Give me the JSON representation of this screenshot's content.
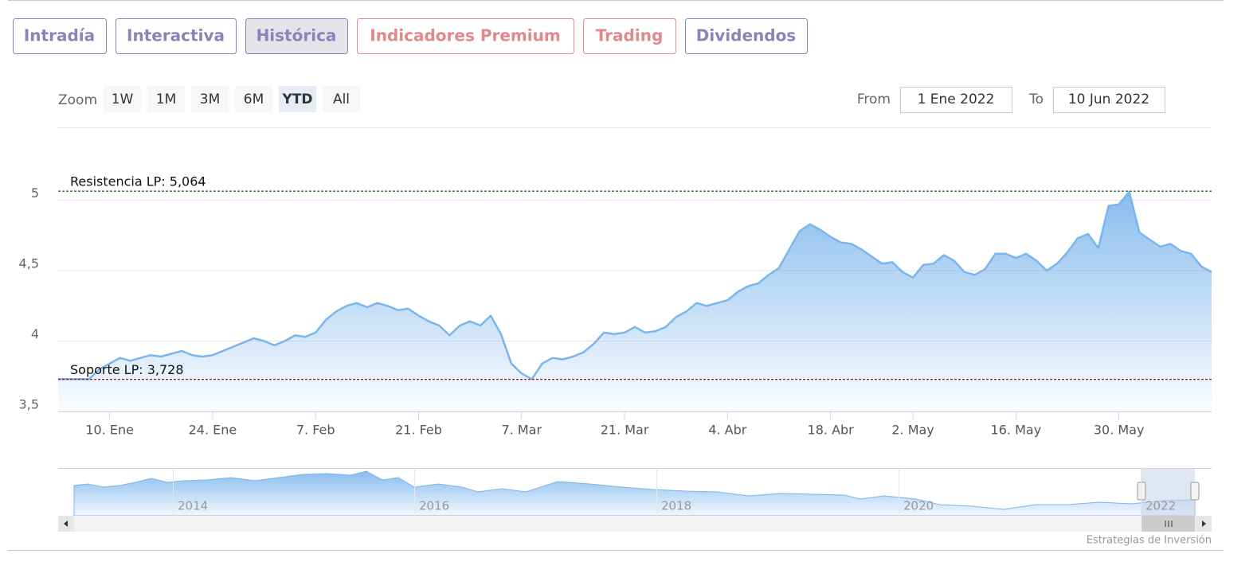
{
  "tabs": [
    {
      "label": "Intradía",
      "color": "#8c82b8",
      "active": false
    },
    {
      "label": "Interactiva",
      "color": "#8c82b8",
      "active": false
    },
    {
      "label": "Histórica",
      "color": "#8c82b8",
      "active": true
    },
    {
      "label": "Indicadores Premium",
      "color": "#e0888a",
      "active": false
    },
    {
      "label": "Trading",
      "color": "#e0888a",
      "active": false
    },
    {
      "label": "Dividendos",
      "color": "#8c82b8",
      "active": false
    }
  ],
  "range_selector": {
    "zoom_label": "Zoom",
    "buttons": [
      "1W",
      "1M",
      "3M",
      "6M",
      "YTD",
      "All"
    ],
    "selected": "YTD"
  },
  "date_inputs": {
    "from_label": "From",
    "from": "1 Ene 2022",
    "to_label": "To",
    "to": "10 Jun 2022"
  },
  "chart_data": {
    "type": "area",
    "color": "#7cb5ec",
    "values": [
      3.73,
      3.73,
      3.73,
      3.73,
      3.8,
      3.84,
      3.88,
      3.86,
      3.88,
      3.9,
      3.89,
      3.91,
      3.93,
      3.9,
      3.89,
      3.9,
      3.93,
      3.96,
      3.99,
      4.02,
      4.0,
      3.97,
      4.0,
      4.04,
      4.03,
      4.06,
      4.15,
      4.21,
      4.25,
      4.27,
      4.24,
      4.27,
      4.25,
      4.22,
      4.23,
      4.18,
      4.14,
      4.11,
      4.04,
      4.11,
      4.14,
      4.11,
      4.18,
      4.05,
      3.84,
      3.77,
      3.73,
      3.84,
      3.88,
      3.87,
      3.89,
      3.92,
      3.98,
      4.06,
      4.05,
      4.06,
      4.1,
      4.06,
      4.07,
      4.1,
      4.17,
      4.21,
      4.27,
      4.25,
      4.27,
      4.29,
      4.35,
      4.39,
      4.41,
      4.47,
      4.52,
      4.65,
      4.78,
      4.83,
      4.79,
      4.74,
      4.7,
      4.69,
      4.65,
      4.6,
      4.55,
      4.56,
      4.49,
      4.45,
      4.54,
      4.55,
      4.61,
      4.57,
      4.49,
      4.47,
      4.51,
      4.62,
      4.62,
      4.59,
      4.62,
      4.57,
      4.5,
      4.55,
      4.63,
      4.73,
      4.76,
      4.66,
      4.96,
      4.97,
      5.06,
      4.77,
      4.72,
      4.67,
      4.69,
      4.64,
      4.62,
      4.53,
      4.49
    ],
    "xlim": [
      0,
      112
    ],
    "xticks": [
      {
        "value": 5,
        "label": "10. Ene"
      },
      {
        "value": 15,
        "label": "24. Ene"
      },
      {
        "value": 25,
        "label": "7. Feb"
      },
      {
        "value": 35,
        "label": "21. Feb"
      },
      {
        "value": 45,
        "label": "7. Mar"
      },
      {
        "value": 55,
        "label": "21. Mar"
      },
      {
        "value": 65,
        "label": "4. Abr"
      },
      {
        "value": 75,
        "label": "18. Abr"
      },
      {
        "value": 83,
        "label": "2. May"
      },
      {
        "value": 93,
        "label": "16. May"
      },
      {
        "value": 103,
        "label": "30. May"
      }
    ],
    "ylim": [
      3.5,
      5.5
    ],
    "yticks": [
      {
        "value": 3.5,
        "label": "3,5"
      },
      4,
      {
        "value": 4.5,
        "label": "4,5"
      },
      5
    ],
    "grid": true,
    "plot_lines": [
      {
        "label": "Resistencia LP: 5,064",
        "value": 5.064,
        "color": "#1e7a1e"
      },
      {
        "label": "Soporte LP: 3,728",
        "value": 3.728,
        "color": "#8b1a2b"
      }
    ]
  },
  "navigator": {
    "labels": [
      "2014",
      "2016",
      "2018",
      "2020",
      "2022"
    ]
  },
  "credit": "Estrategias de Inversión"
}
